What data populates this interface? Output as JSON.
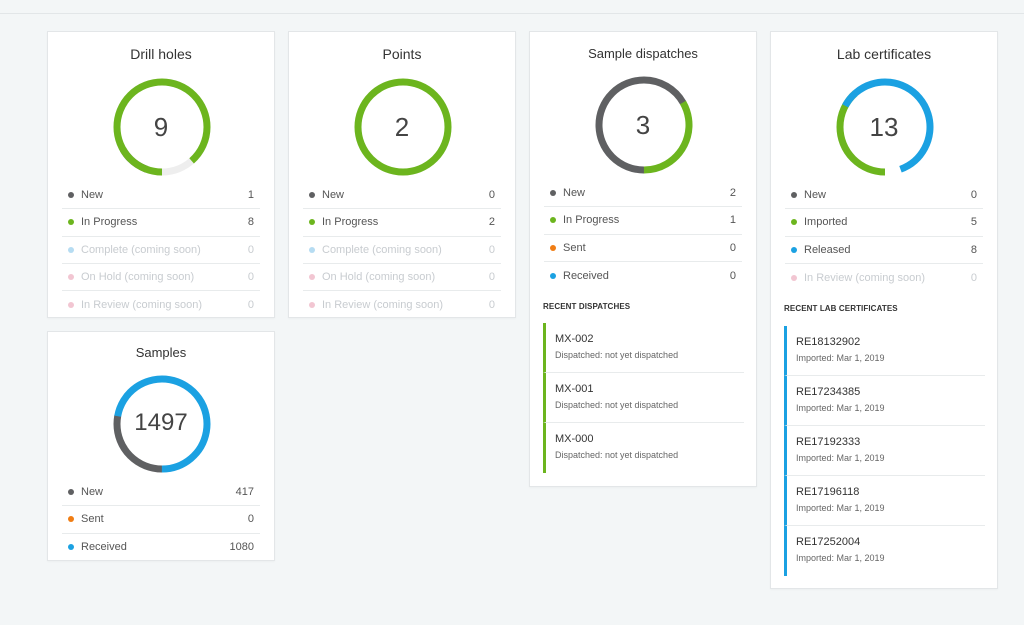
{
  "colors": {
    "new": "#5f6062",
    "in_progress": "#6cb51e",
    "complete": "#b6dcf2",
    "on_hold": "#f2c6d2",
    "in_review": "#f2c6d2",
    "sent": "#f07d14",
    "received": "#1ba1e2",
    "imported": "#6cb51e",
    "released": "#1ba1e2"
  },
  "drill_holes": {
    "title": "Drill holes",
    "total": "9",
    "rows": [
      {
        "label": "New",
        "count": "1"
      },
      {
        "label": "In Progress",
        "count": "8"
      },
      {
        "label": "Complete (coming soon)",
        "count": "0"
      },
      {
        "label": "On Hold (coming soon)",
        "count": "0"
      },
      {
        "label": "In Review (coming soon)",
        "count": "0"
      }
    ]
  },
  "points": {
    "title": "Points",
    "total": "2",
    "rows": [
      {
        "label": "New",
        "count": "0"
      },
      {
        "label": "In Progress",
        "count": "2"
      },
      {
        "label": "Complete (coming soon)",
        "count": "0"
      },
      {
        "label": "On Hold (coming soon)",
        "count": "0"
      },
      {
        "label": "In Review (coming soon)",
        "count": "0"
      }
    ]
  },
  "sample_dispatches": {
    "title": "Sample dispatches",
    "total": "3",
    "rows": [
      {
        "label": "New",
        "count": "2"
      },
      {
        "label": "In Progress",
        "count": "1"
      },
      {
        "label": "Sent",
        "count": "0"
      },
      {
        "label": "Received",
        "count": "0"
      }
    ],
    "recent_heading": "RECENT DISPATCHES",
    "recent": [
      {
        "code": "MX-002",
        "status": "Dispatched: not yet dispatched"
      },
      {
        "code": "MX-001",
        "status": "Dispatched: not yet dispatched"
      },
      {
        "code": "MX-000",
        "status": "Dispatched: not yet dispatched"
      }
    ]
  },
  "lab_certificates": {
    "title": "Lab certificates",
    "total": "13",
    "rows": [
      {
        "label": "New",
        "count": "0"
      },
      {
        "label": "Imported",
        "count": "5"
      },
      {
        "label": "Released",
        "count": "8"
      },
      {
        "label": "In Review (coming soon)",
        "count": "0"
      }
    ],
    "recent_heading": "RECENT LAB CERTIFICATES",
    "recent": [
      {
        "code": "RE18132902",
        "status": "Imported: Mar 1, 2019"
      },
      {
        "code": "RE17234385",
        "status": "Imported: Mar 1, 2019"
      },
      {
        "code": "RE17192333",
        "status": "Imported: Mar 1, 2019"
      },
      {
        "code": "RE17196118",
        "status": "Imported: Mar 1, 2019"
      },
      {
        "code": "RE17252004",
        "status": "Imported: Mar 1, 2019"
      }
    ]
  },
  "samples": {
    "title": "Samples",
    "total": "1497",
    "rows": [
      {
        "label": "New",
        "count": "417"
      },
      {
        "label": "Sent",
        "count": "0"
      },
      {
        "label": "Received",
        "count": "1080"
      }
    ]
  }
}
